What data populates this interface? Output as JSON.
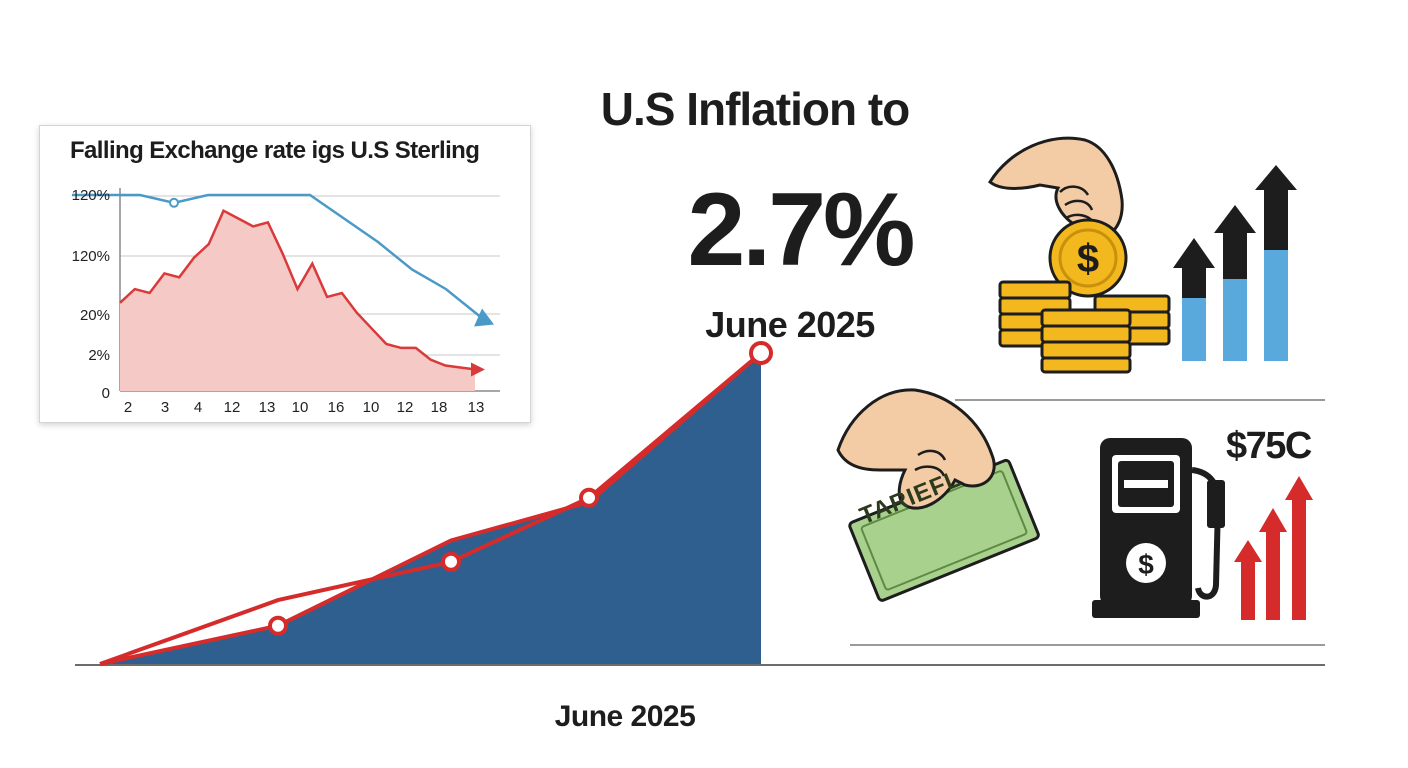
{
  "header": {
    "title": "U.S Inflation to",
    "headline_value": "2.7%",
    "headline_period": "June 2025",
    "axis_period_label": "June 2025"
  },
  "inset": {
    "title": "Falling Exchange rate igs U.S Sterling"
  },
  "icons": {
    "tariff_label": "TARIEFL",
    "fuel_price": "$75C",
    "names": [
      "coin-stack-hand-icon",
      "rising-bar-arrows-icon",
      "tariff-bill-hand-icon",
      "fuel-pump-icon",
      "red-rising-arrows-icon"
    ]
  },
  "colors": {
    "main_area": "#2f5f8e",
    "main_line": "#d62b2b",
    "inset_area": "#f4c9c6",
    "inset_red_line": "#d93a3a",
    "inset_blue_line": "#4a9ac8",
    "coin": "#f3b81e",
    "bar_blue": "#5aa9dc",
    "bill_green": "#a9d18e"
  },
  "chart_data": [
    {
      "type": "area",
      "title": "",
      "xlabel": "June 2025",
      "ylabel": "",
      "series": [
        {
          "values": [
            0,
            0.9,
            2.9,
            3.8,
            7.3
          ]
        }
      ],
      "line_overlay": [
        {
          "values": [
            0,
            1.5,
            2.4,
            3.9,
            7.3
          ]
        }
      ],
      "ylim": [
        0,
        7.5
      ],
      "grid": false
    },
    {
      "type": "line",
      "title": "Falling Exchange rate igs U.S Sterling",
      "x_ticks": [
        "2",
        "3",
        "4",
        "12",
        "13",
        "10",
        "16",
        "10",
        "12",
        "18",
        "13"
      ],
      "y_ticks": [
        "120%",
        "120%",
        "20%",
        "2%",
        "0"
      ],
      "series": [
        {
          "values": [
            45,
            52,
            50,
            60,
            58,
            68,
            75,
            92,
            88,
            84,
            86,
            70,
            52,
            65,
            48,
            50,
            40,
            32,
            24,
            22,
            22,
            16,
            13,
            12,
            11
          ]
        },
        {
          "values": [
            100,
            100,
            100,
            96,
            100,
            100,
            100,
            100,
            88,
            76,
            62,
            52,
            38
          ]
        }
      ],
      "ylim": [
        0,
        105
      ],
      "grid": true
    }
  ]
}
